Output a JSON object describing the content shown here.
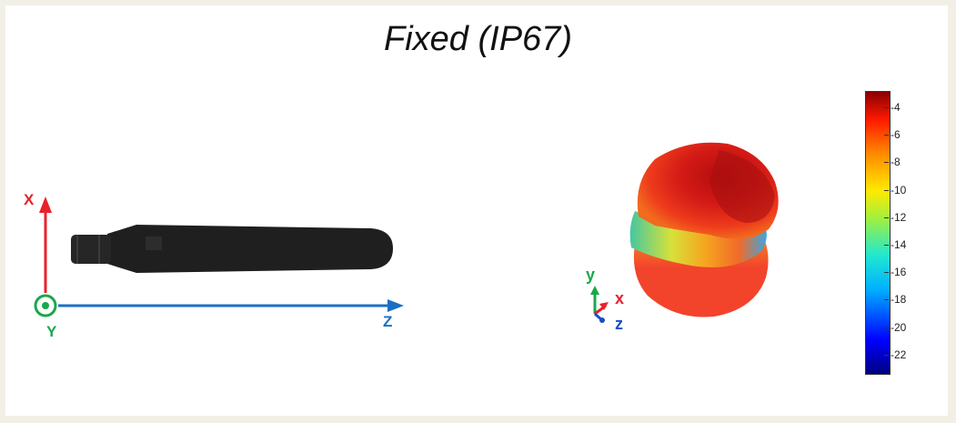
{
  "title": "Fixed (IP67)",
  "left_axes": {
    "x_label": "X",
    "y_label": "Y",
    "z_label": "Z",
    "colors": {
      "x": "#e8212b",
      "y": "#1aa84b",
      "z": "#1a6fc4"
    }
  },
  "right_axes": {
    "x_label": "x",
    "y_label": "y",
    "z_label": "z",
    "colors": {
      "x": "#e8212b",
      "y": "#1aa84b",
      "z": "#1a4fc4"
    }
  },
  "colorbar": {
    "ticks": [
      "-4",
      "-6",
      "-8",
      "-10",
      "-12",
      "-14",
      "-16",
      "-18",
      "-20",
      "-22"
    ]
  },
  "background": "#f2f0e6"
}
